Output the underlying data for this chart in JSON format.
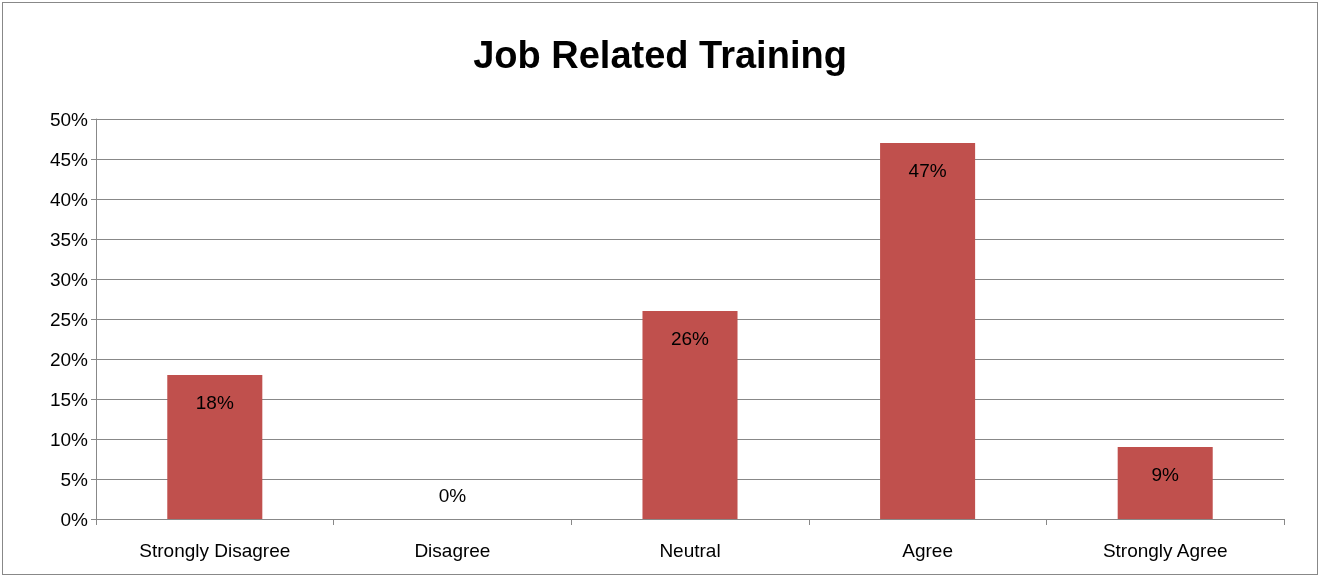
{
  "chart_data": {
    "type": "bar",
    "title": "Job Related Training",
    "categories": [
      "Strongly Disagree",
      "Disagree",
      "Neutral",
      "Agree",
      "Strongly Agree"
    ],
    "values": [
      18,
      0,
      26,
      47,
      9
    ],
    "value_labels": [
      "18%",
      "0%",
      "26%",
      "47%",
      "9%"
    ],
    "color": "#c0504d",
    "ylim": [
      0,
      50
    ],
    "yticks": [
      {
        "value": 0,
        "label": "0%"
      },
      {
        "value": 5,
        "label": "5%"
      },
      {
        "value": 10,
        "label": "10%"
      },
      {
        "value": 15,
        "label": "15%"
      },
      {
        "value": 20,
        "label": "20%"
      },
      {
        "value": 25,
        "label": "25%"
      },
      {
        "value": 30,
        "label": "30%"
      },
      {
        "value": 35,
        "label": "35%"
      },
      {
        "value": 40,
        "label": "40%"
      },
      {
        "value": 45,
        "label": "45%"
      },
      {
        "value": 50,
        "label": "50%"
      }
    ],
    "grid": "y"
  }
}
